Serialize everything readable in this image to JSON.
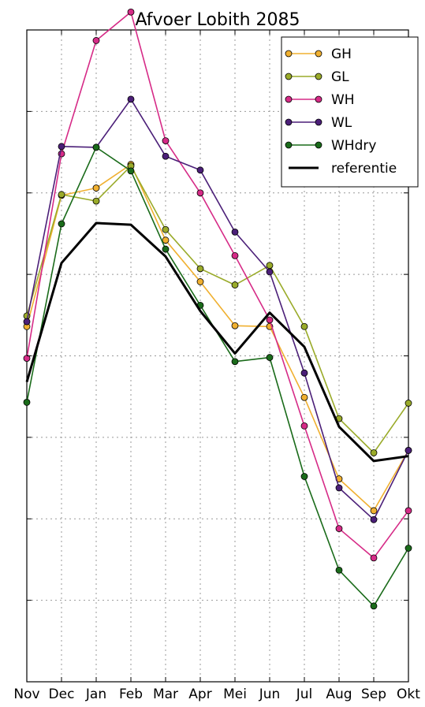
{
  "chart_data": {
    "type": "line",
    "title": "Afvoer Lobith 2085",
    "xlabel": "",
    "ylabel": "",
    "categories": [
      "Nov",
      "Dec",
      "Jan",
      "Feb",
      "Mar",
      "Apr",
      "Mei",
      "Jun",
      "Jul",
      "Aug",
      "Sep",
      "Okt"
    ],
    "ylim": [
      0,
      8
    ],
    "y_tick_labels_visible": false,
    "grid": true,
    "legend_position": "top-right",
    "series": [
      {
        "name": "GH",
        "color": "#f0b030",
        "marker": true,
        "values": [
          4.36,
          5.97,
          6.06,
          6.35,
          5.42,
          4.91,
          4.37,
          4.36,
          3.49,
          2.49,
          2.1,
          2.84
        ]
      },
      {
        "name": "GL",
        "color": "#9aab2a",
        "marker": true,
        "values": [
          4.49,
          5.98,
          5.9,
          6.33,
          5.55,
          5.07,
          4.87,
          5.11,
          4.36,
          3.23,
          2.81,
          3.42
        ]
      },
      {
        "name": "WH",
        "color": "#d62b87",
        "marker": true,
        "values": [
          3.97,
          6.48,
          7.87,
          8.22,
          6.64,
          6.0,
          5.23,
          4.44,
          3.14,
          1.88,
          1.52,
          2.1
        ]
      },
      {
        "name": "WL",
        "color": "#4b1f78",
        "marker": true,
        "values": [
          4.42,
          6.57,
          6.56,
          7.15,
          6.45,
          6.28,
          5.52,
          5.03,
          3.79,
          2.38,
          1.99,
          2.84
        ]
      },
      {
        "name": "WHdry",
        "color": "#1a6b1a",
        "marker": true,
        "values": [
          3.43,
          5.62,
          6.56,
          6.27,
          5.31,
          4.62,
          3.93,
          3.98,
          2.52,
          1.37,
          0.93,
          1.64
        ]
      },
      {
        "name": "referentie",
        "color": "#000000",
        "marker": false,
        "values": [
          3.68,
          5.14,
          5.63,
          5.61,
          5.22,
          4.55,
          4.03,
          4.53,
          4.11,
          3.13,
          2.71,
          2.77
        ]
      }
    ]
  }
}
